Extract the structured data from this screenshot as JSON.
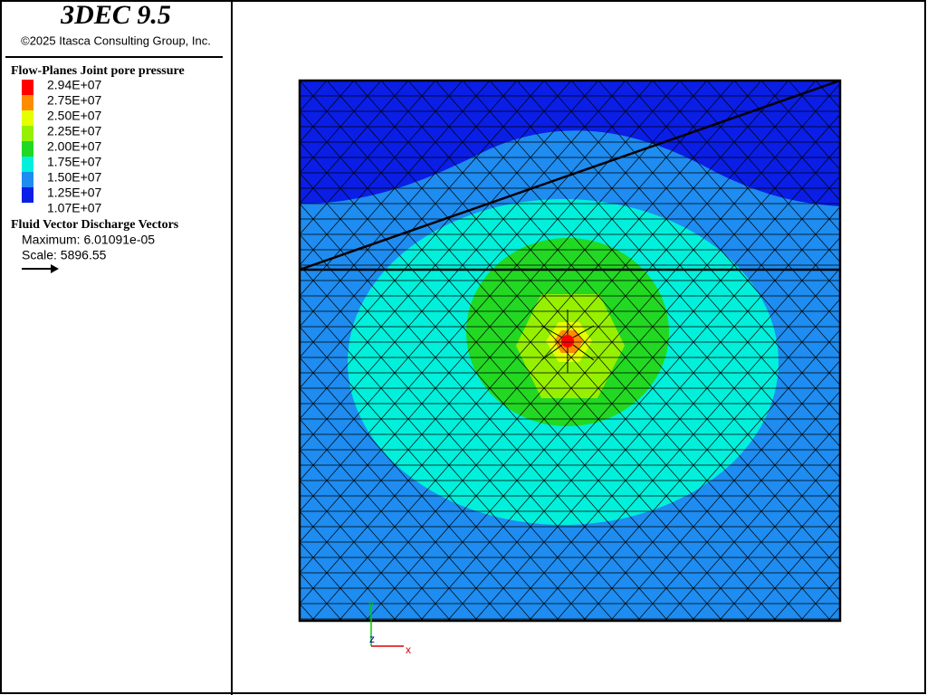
{
  "header": {
    "title": "3DEC 9.5",
    "copyright": "©2025 Itasca Consulting Group, Inc."
  },
  "legend": {
    "title": "Flow-Planes Joint pore pressure",
    "labels": [
      "2.94E+07",
      "2.75E+07",
      "2.50E+07",
      "2.25E+07",
      "2.00E+07",
      "1.75E+07",
      "1.50E+07",
      "1.25E+07",
      "1.07E+07"
    ],
    "colors": [
      "#ff0000",
      "#ff8c00",
      "#e6ff00",
      "#96f000",
      "#22d822",
      "#00f0dc",
      "#1e8cf0",
      "#0a1ee6"
    ]
  },
  "vectors": {
    "title": "Fluid Vector Discharge Vectors",
    "maximum": "Maximum: 6.01091e-05",
    "scale": "Scale: 5896.55"
  },
  "axes": {
    "y": "y",
    "z": "z",
    "x": "x"
  }
}
